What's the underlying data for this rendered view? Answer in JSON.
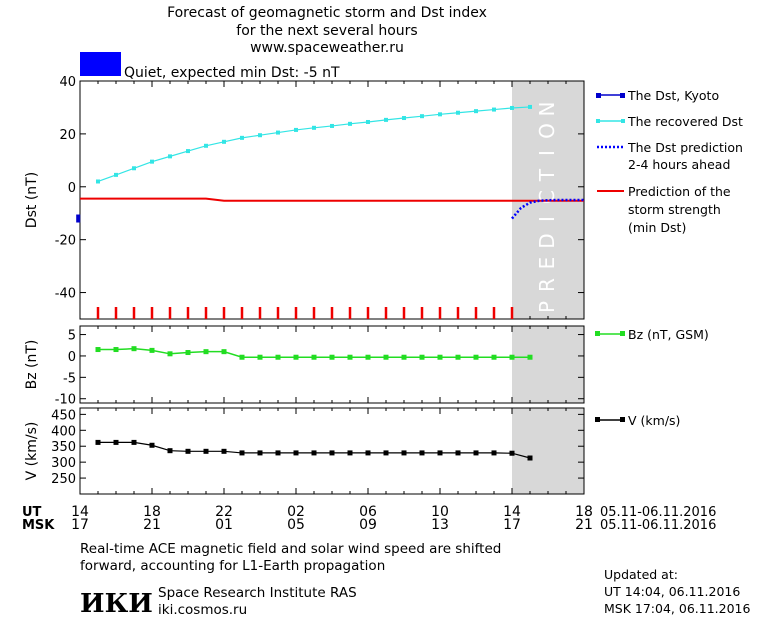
{
  "title_lines": [
    "Forecast of geomagnetic storm and Dst index",
    "for the next several hours",
    "www.spaceweather.ru"
  ],
  "status": {
    "text": "Quiet, expected min Dst: -5 nT",
    "color": "#0000ff"
  },
  "prediction_label": "PREDICTION",
  "colors": {
    "dst": "#0000cc",
    "recovered": "#33e5e5",
    "prediction_dst": "#0000ff",
    "min_dst": "#ee0000",
    "bz": "#22dd22",
    "v": "#000000",
    "prediction_band": "#d8d8d8"
  },
  "legend": {
    "dst_kyoto": "The Dst, Kyoto",
    "recovered": "The recovered Dst",
    "prediction_line1": "The Dst prediction",
    "prediction_line2": "2-4 hours ahead",
    "strength_line1": "Prediction of the",
    "strength_line2": "storm strength",
    "strength_line3": "(min Dst)",
    "bz": "Bz (nT, GSM)",
    "v": "V (km/s)"
  },
  "time_axis": {
    "ut_label": "UT",
    "msk_label": "MSK",
    "hours_start": 0,
    "hours_end": 28,
    "prediction_start": 24,
    "ut_ticks": [
      "14",
      "18",
      "22",
      "02",
      "06",
      "10",
      "14",
      "18"
    ],
    "msk_ticks": [
      "17",
      "21",
      "01",
      "05",
      "09",
      "13",
      "17",
      "21"
    ],
    "date_range": "05.11-06.11.2016"
  },
  "footer": {
    "note_line1": "Real-time ACE magnetic field and solar wind speed are shifted",
    "note_line2": "forward, accounting for L1-Earth propagation",
    "logo": "ИКИ",
    "institute": "Space Research Institute RAS",
    "site": "iki.cosmos.ru",
    "updated_label": "Updated at:",
    "updated_ut": "UT  14:04, 06.11.2016",
    "updated_msk": "MSK 17:04, 06.11.2016"
  },
  "chart_data": [
    {
      "type": "line",
      "ylabel": "Dst (nT)",
      "ylim": [
        -50,
        40
      ],
      "yticks": [
        40,
        20,
        0,
        -20,
        -40
      ],
      "series": [
        {
          "name": "The Dst, Kyoto",
          "x": [
            -0.1
          ],
          "values": [
            -12
          ]
        },
        {
          "name": "The recovered Dst",
          "x": [
            1,
            2,
            3,
            4,
            5,
            6,
            7,
            8,
            9,
            10,
            11,
            12,
            13,
            14,
            15,
            16,
            17,
            18,
            19,
            20,
            21,
            22,
            23,
            24,
            25
          ],
          "values": [
            2,
            4.5,
            7,
            9.5,
            11.5,
            13.5,
            15.5,
            17,
            18.5,
            19.5,
            20.5,
            21.5,
            22.3,
            23,
            23.8,
            24.5,
            25.3,
            26,
            26.7,
            27.4,
            28,
            28.6,
            29.2,
            29.8,
            30.2
          ]
        },
        {
          "name": "The Dst prediction 2-4 hours ahead",
          "x": [
            24,
            24.5,
            25,
            25.5,
            26,
            26.5,
            27,
            27.5,
            28
          ],
          "values": [
            -12,
            -8,
            -6,
            -5.3,
            -5.1,
            -5,
            -5,
            -5,
            -5
          ]
        },
        {
          "name": "Prediction of the storm strength (min Dst)",
          "x": [
            0,
            7,
            8,
            28
          ],
          "values": [
            -4.5,
            -4.5,
            -5.3,
            -5.3
          ]
        }
      ],
      "storm_ticks_hours": [
        1,
        2,
        3,
        4,
        5,
        6,
        7,
        8,
        9,
        10,
        11,
        12,
        13,
        14,
        15,
        16,
        17,
        18,
        19,
        20,
        21,
        22,
        23,
        24
      ]
    },
    {
      "type": "line",
      "ylabel": "Bz (nT)",
      "ylim": [
        -11,
        7
      ],
      "yticks": [
        5,
        0,
        -5,
        -10
      ],
      "series": [
        {
          "name": "Bz (nT, GSM)",
          "x": [
            1,
            2,
            3,
            4,
            5,
            6,
            7,
            8,
            9,
            10,
            11,
            12,
            13,
            14,
            15,
            16,
            17,
            18,
            19,
            20,
            21,
            22,
            23,
            24,
            25
          ],
          "values": [
            1.5,
            1.5,
            1.7,
            1.3,
            0.5,
            0.8,
            1.0,
            1.0,
            -0.3,
            -0.3,
            -0.3,
            -0.3,
            -0.3,
            -0.3,
            -0.3,
            -0.3,
            -0.3,
            -0.3,
            -0.3,
            -0.3,
            -0.3,
            -0.3,
            -0.3,
            -0.3,
            -0.3
          ]
        }
      ]
    },
    {
      "type": "line",
      "ylabel": "V (km/s)",
      "ylim": [
        200,
        470
      ],
      "yticks": [
        450,
        400,
        350,
        300,
        250
      ],
      "series": [
        {
          "name": "V (km/s)",
          "x": [
            1,
            2,
            3,
            4,
            5,
            6,
            7,
            8,
            9,
            10,
            11,
            12,
            13,
            14,
            15,
            16,
            17,
            18,
            19,
            20,
            21,
            22,
            23,
            24,
            25
          ],
          "values": [
            362,
            362,
            362,
            353,
            336,
            334,
            334,
            334,
            329,
            329,
            329,
            329,
            329,
            329,
            329,
            329,
            329,
            329,
            329,
            329,
            329,
            329,
            329,
            328,
            313
          ]
        }
      ]
    }
  ]
}
